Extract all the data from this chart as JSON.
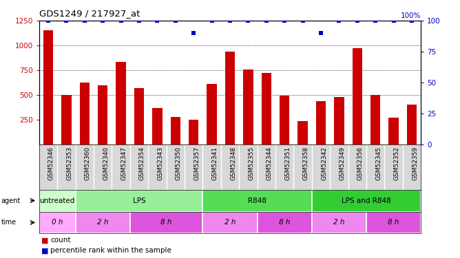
{
  "title": "GDS1249 / 217927_at",
  "samples": [
    "GSM52346",
    "GSM52353",
    "GSM52360",
    "GSM52340",
    "GSM52347",
    "GSM52354",
    "GSM52343",
    "GSM52350",
    "GSM52357",
    "GSM52341",
    "GSM52348",
    "GSM52355",
    "GSM52344",
    "GSM52351",
    "GSM52358",
    "GSM52342",
    "GSM52349",
    "GSM52356",
    "GSM52345",
    "GSM52352",
    "GSM52359"
  ],
  "counts": [
    1150,
    500,
    625,
    600,
    830,
    570,
    370,
    280,
    250,
    610,
    940,
    760,
    720,
    490,
    235,
    435,
    480,
    970,
    500,
    270,
    400
  ],
  "percentile": [
    100,
    100,
    100,
    100,
    100,
    100,
    100,
    100,
    90,
    100,
    100,
    100,
    100,
    100,
    100,
    90,
    100,
    100,
    100,
    100,
    100
  ],
  "bar_color": "#cc0000",
  "dot_color": "#0000cc",
  "ylim_left": [
    0,
    1250
  ],
  "ylim_right": [
    0,
    100
  ],
  "yticks_left": [
    250,
    500,
    750,
    1000,
    1250
  ],
  "yticks_right": [
    0,
    25,
    50,
    75,
    100
  ],
  "agent_groups": [
    {
      "label": "untreated",
      "start": 0,
      "end": 2,
      "color": "#ccffcc"
    },
    {
      "label": "LPS",
      "start": 2,
      "end": 9,
      "color": "#99ee99"
    },
    {
      "label": "R848",
      "start": 9,
      "end": 15,
      "color": "#55dd55"
    },
    {
      "label": "LPS and R848",
      "start": 15,
      "end": 21,
      "color": "#33cc33"
    }
  ],
  "time_groups": [
    {
      "label": "0 h",
      "start": 0,
      "end": 2,
      "color": "#ffaaff"
    },
    {
      "label": "2 h",
      "start": 2,
      "end": 5,
      "color": "#ee88ee"
    },
    {
      "label": "8 h",
      "start": 5,
      "end": 9,
      "color": "#dd55dd"
    },
    {
      "label": "2 h",
      "start": 9,
      "end": 12,
      "color": "#ee88ee"
    },
    {
      "label": "8 h",
      "start": 12,
      "end": 15,
      "color": "#dd55dd"
    },
    {
      "label": "2 h",
      "start": 15,
      "end": 18,
      "color": "#ee88ee"
    },
    {
      "label": "8 h",
      "start": 18,
      "end": 21,
      "color": "#dd55dd"
    }
  ],
  "plot_bg_color": "#ffffff",
  "tick_bg_color": "#d8d8d8",
  "fig_width": 6.68,
  "fig_height": 3.75,
  "dpi": 100
}
